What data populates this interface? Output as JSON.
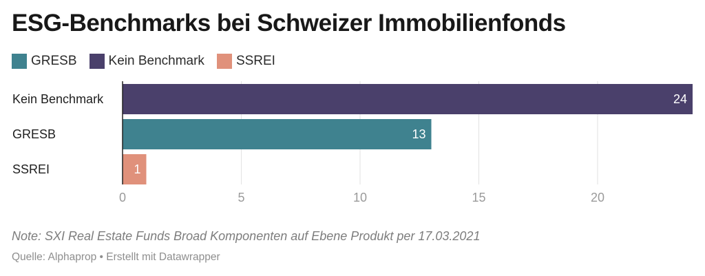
{
  "title": "ESG-Benchmarks bei Schweizer Immobilienfonds",
  "legend": [
    {
      "label": "GRESB",
      "color": "#3f828f"
    },
    {
      "label": "Kein Benchmark",
      "color": "#4a406b"
    },
    {
      "label": "SSREI",
      "color": "#e0917b"
    }
  ],
  "chart_data": {
    "type": "bar",
    "orientation": "horizontal",
    "title": "ESG-Benchmarks bei Schweizer Immobilienfonds",
    "categories": [
      "Kein Benchmark",
      "GRESB",
      "SSREI"
    ],
    "values": [
      24,
      13,
      1
    ],
    "colors": [
      "#4a406b",
      "#3f828f",
      "#e0917b"
    ],
    "value_labels": [
      "24",
      "13",
      "1"
    ],
    "xlim": [
      0,
      24
    ],
    "x_ticks": [
      0,
      5,
      10,
      15,
      20
    ],
    "x_tick_labels": [
      "0",
      "5",
      "10",
      "15",
      "20"
    ],
    "grid": true,
    "xlabel": "",
    "ylabel": ""
  },
  "note": "Note: SXI Real Estate Funds Broad Komponenten auf Ebene Produkt per 17.03.2021",
  "source": "Quelle: Alphaprop • Erstellt mit Datawrapper"
}
